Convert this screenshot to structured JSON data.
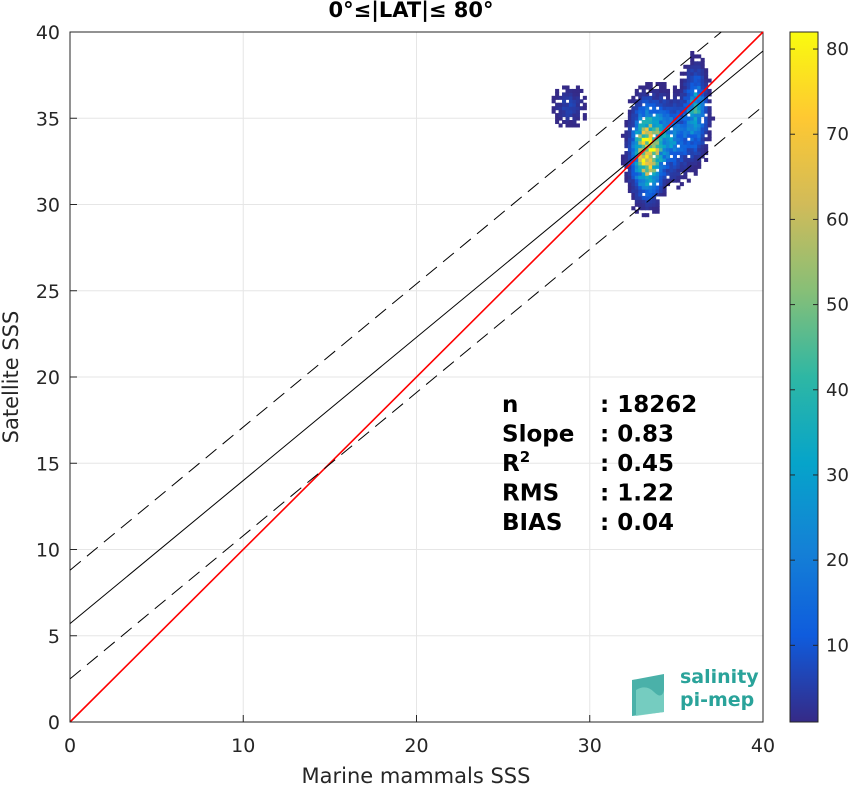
{
  "chart_data": {
    "type": "heatmap",
    "title": "0°≤|LAT|≤ 80°",
    "xlabel": "Marine mammals SSS",
    "ylabel": "Satellite SSS",
    "xlim": [
      0,
      40
    ],
    "ylim": [
      0,
      40
    ],
    "xticks": [
      0,
      10,
      20,
      30,
      40
    ],
    "yticks": [
      0,
      5,
      10,
      15,
      20,
      25,
      30,
      35,
      40
    ],
    "grid": true,
    "lines": [
      {
        "name": "1:1",
        "color": "#ff0000",
        "style": "solid",
        "intercept": 0,
        "slope": 1
      },
      {
        "name": "fit",
        "color": "#000000",
        "style": "solid",
        "intercept": 5.7,
        "slope": 0.83
      },
      {
        "name": "fit+",
        "color": "#000000",
        "style": "dashed",
        "intercept": 8.8,
        "slope": 0.83
      },
      {
        "name": "fit-",
        "color": "#000000",
        "style": "dashed",
        "intercept": 2.5,
        "slope": 0.83
      }
    ],
    "density_clusters": [
      {
        "cx": 33.2,
        "cy": 33.0,
        "sx": 0.45,
        "sy": 1.3,
        "peak": 80
      },
      {
        "cx": 34.3,
        "cy": 33.8,
        "sx": 0.8,
        "sy": 1.1,
        "peak": 30
      },
      {
        "cx": 36.0,
        "cy": 35.4,
        "sx": 0.35,
        "sy": 1.2,
        "peak": 35
      },
      {
        "cx": 28.7,
        "cy": 35.6,
        "sx": 0.5,
        "sy": 0.6,
        "peak": 6
      }
    ],
    "colorbar": {
      "min": 1,
      "max": 82,
      "ticks": [
        10,
        20,
        30,
        40,
        50,
        60,
        70,
        80
      ],
      "colormap": "parula"
    },
    "stats": [
      {
        "label": "n",
        "sup": "",
        "value": ": 18262"
      },
      {
        "label": "Slope",
        "sup": "",
        "value": ": 0.83"
      },
      {
        "label": "R",
        "sup": "2",
        "value": ": 0.45"
      },
      {
        "label": "RMS",
        "sup": "",
        "value": ": 1.22"
      },
      {
        "label": "BIAS",
        "sup": "",
        "value": ": 0.04"
      }
    ]
  },
  "logo": {
    "line1": "salinity",
    "line2": "pi-mep"
  },
  "colors": {
    "one_to_one": "#ff0000",
    "fit": "#000000",
    "grid": "#e6e6e6",
    "axis": "#262626",
    "logo": "#2aa39a"
  }
}
